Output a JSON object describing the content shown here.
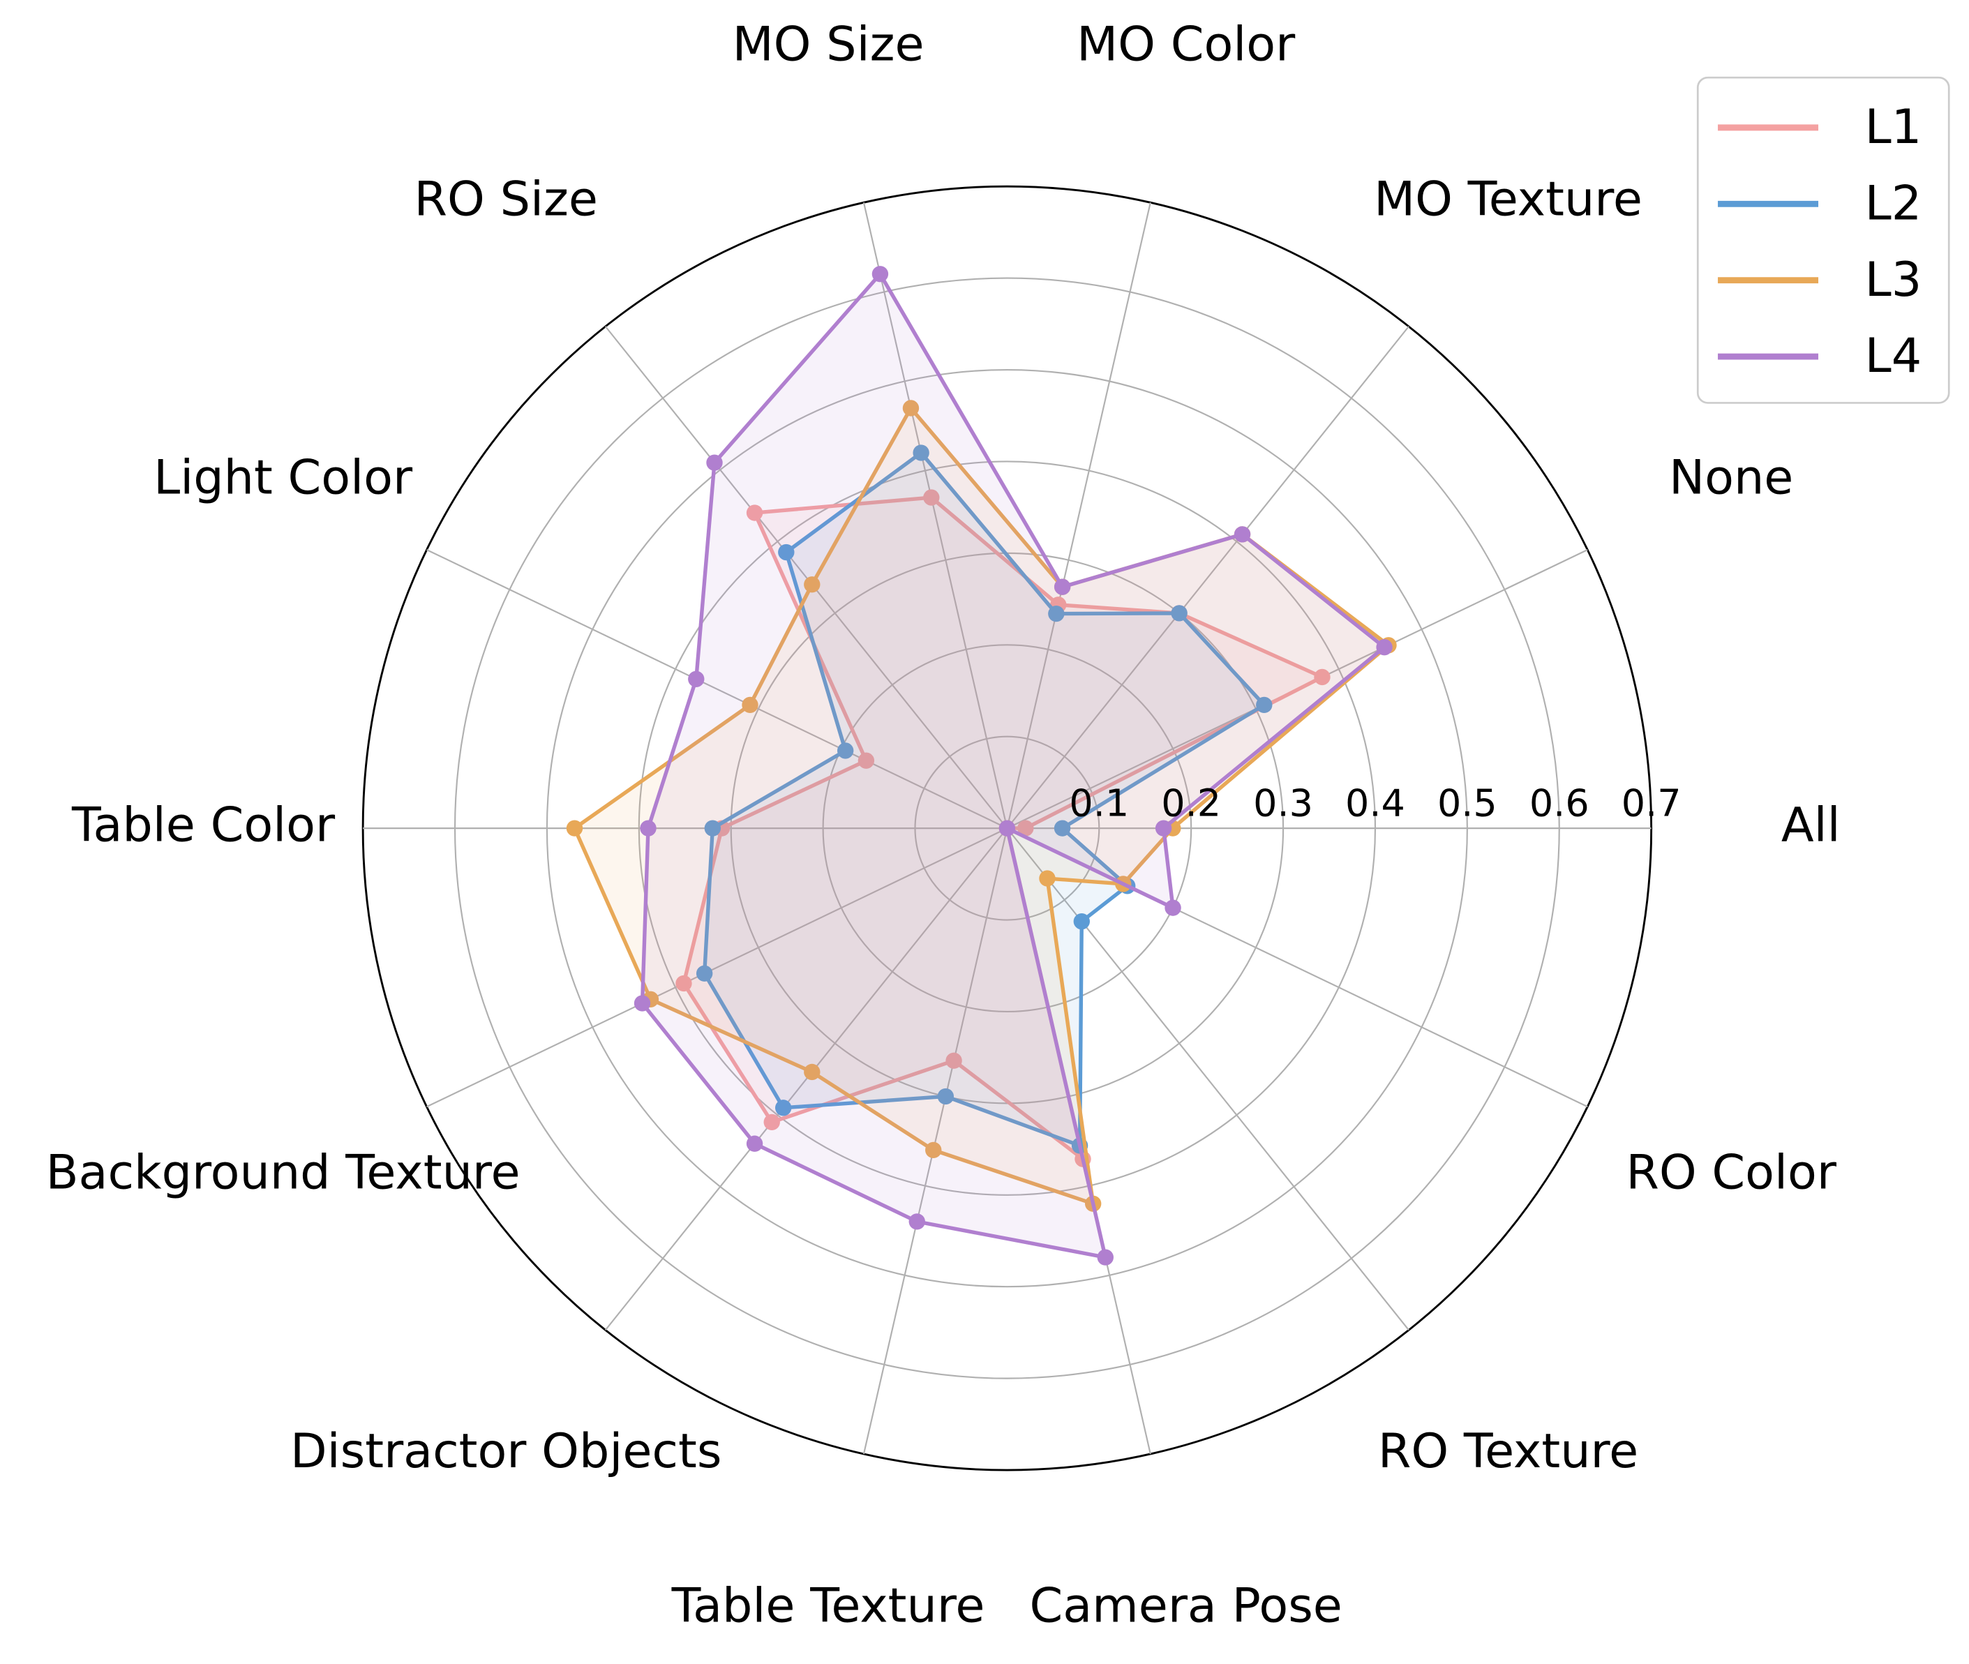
{
  "chart_data": {
    "type": "radar",
    "categories": [
      "All",
      "None",
      "MO Texture",
      "MO Color",
      "MO Size",
      "RO Size",
      "Light Color",
      "Table Color",
      "Background Texture",
      "Distractor Objects",
      "Table Texture",
      "Camera Pose",
      "RO Texture",
      "RO Color"
    ],
    "series": [
      {
        "name": "L1",
        "color": "#f4a1a1",
        "values": [
          0.02,
          0.38,
          0.3,
          0.25,
          0.37,
          0.44,
          0.17,
          0.31,
          0.39,
          0.41,
          0.26,
          0.37,
          0,
          0
        ]
      },
      {
        "name": "L2",
        "color": "#5b9bd5",
        "values": [
          0.06,
          0.31,
          0.3,
          0.24,
          0.42,
          0.385,
          0.195,
          0.32,
          0.365,
          0.39,
          0.3,
          0.355,
          0.13,
          0.145
        ]
      },
      {
        "name": "L3",
        "color": "#e8a857",
        "values": [
          0.18,
          0.46,
          0.41,
          0.27,
          0.47,
          0.34,
          0.31,
          0.47,
          0.43,
          0.34,
          0.36,
          0.42,
          0.07,
          0.14
        ]
      },
      {
        "name": "L4",
        "color": "#b07fcf",
        "values": [
          0.17,
          0.455,
          0.41,
          0.27,
          0.62,
          0.51,
          0.375,
          0.39,
          0.44,
          0.44,
          0.44,
          0.48,
          0,
          0.2
        ]
      }
    ],
    "ylim": [
      0,
      0.7
    ],
    "yticks": [
      0.1,
      0.2,
      0.3,
      0.4,
      0.5,
      0.6,
      0.7
    ],
    "grid": true,
    "legend": "upper right"
  }
}
